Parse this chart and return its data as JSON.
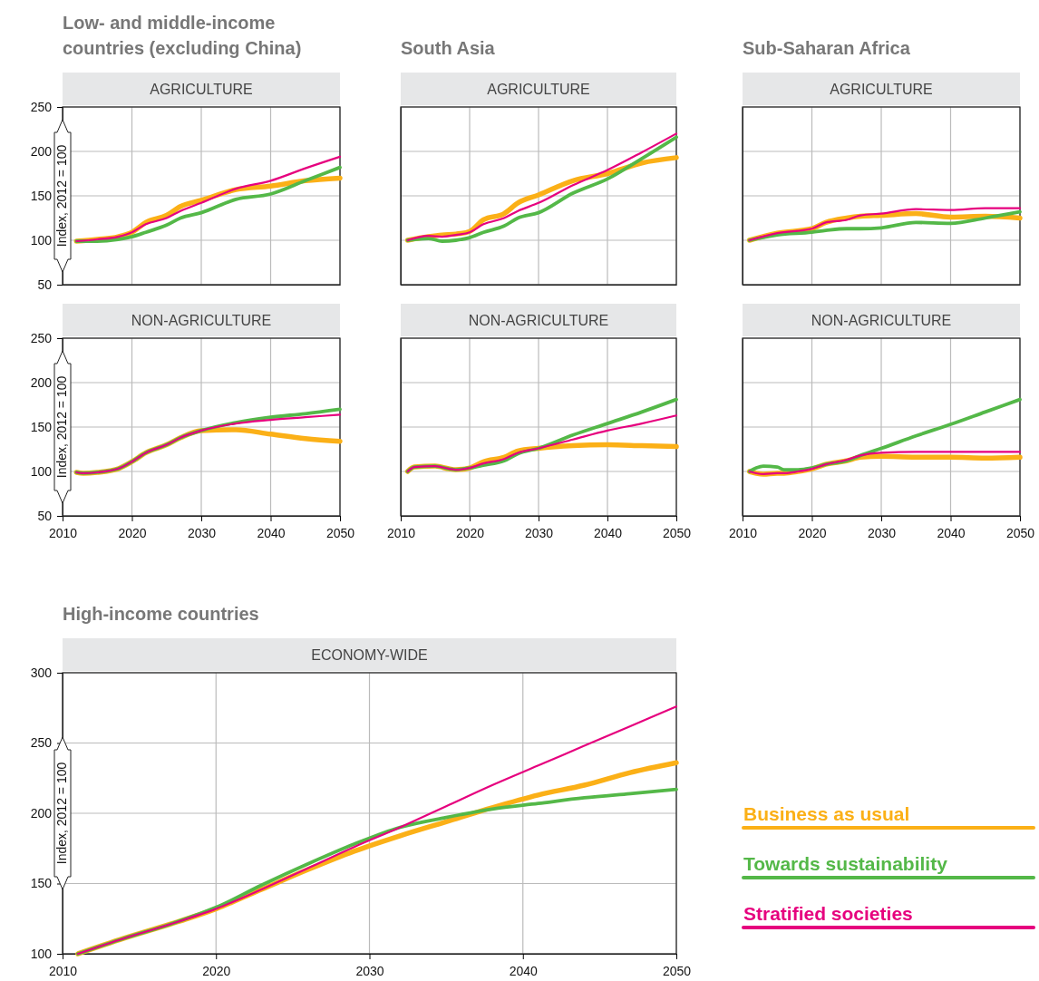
{
  "chart_data": [
    {
      "type": "line",
      "title": "Low- and middle-income countries (excluding China)",
      "subtitle": "AGRICULTURE",
      "ylabel": "Index, 2012 = 100",
      "xlim": [
        2010,
        2050
      ],
      "xticks": [
        2010,
        2020,
        2030,
        2040,
        2050
      ],
      "ylim": [
        50,
        250
      ],
      "yticks": [
        50,
        100,
        150,
        200,
        250
      ],
      "grid": true,
      "tick_labels": "y",
      "x": [
        2012,
        2015,
        2018,
        2020,
        2022,
        2025,
        2027,
        2030,
        2035,
        2040,
        2045,
        2050
      ],
      "series": [
        {
          "color": "#fbb017",
          "values": [
            99,
            101,
            104,
            109,
            120,
            128,
            138,
            145,
            157,
            161,
            167,
            170
          ]
        },
        {
          "color": "#54b848",
          "values": [
            99,
            99,
            101,
            104,
            109,
            117,
            125,
            131,
            146,
            152,
            167,
            182
          ]
        },
        {
          "color": "#e6007e",
          "values": [
            99,
            101,
            104,
            109,
            118,
            125,
            133,
            142,
            158,
            167,
            181,
            194
          ]
        }
      ]
    },
    {
      "type": "line",
      "title": "South Asia",
      "subtitle": "AGRICULTURE",
      "xlim": [
        2010,
        2050
      ],
      "xticks": [
        2010,
        2020,
        2030,
        2040,
        2050
      ],
      "ylim": [
        50,
        250
      ],
      "yticks": [
        50,
        100,
        150,
        200,
        250
      ],
      "grid": true,
      "tick_labels": false,
      "x": [
        2011,
        2014,
        2016,
        2018,
        2020,
        2022,
        2025,
        2027,
        2030,
        2035,
        2040,
        2045,
        2050
      ],
      "series": [
        {
          "color": "#fbb017",
          "values": [
            100,
            104,
            106,
            107,
            110,
            123,
            130,
            142,
            151,
            167,
            175,
            187,
            193
          ]
        },
        {
          "color": "#54b848",
          "values": [
            100,
            102,
            99,
            100,
            103,
            109,
            116,
            125,
            131,
            153,
            169,
            192,
            216
          ]
        },
        {
          "color": "#e6007e",
          "values": [
            100,
            105,
            104,
            106,
            109,
            118,
            125,
            133,
            142,
            162,
            179,
            199,
            220
          ]
        }
      ]
    },
    {
      "type": "line",
      "title": "Sub-Saharan Africa",
      "subtitle": "AGRICULTURE",
      "xlim": [
        2010,
        2050
      ],
      "xticks": [
        2010,
        2020,
        2030,
        2040,
        2050
      ],
      "ylim": [
        50,
        250
      ],
      "yticks": [
        50,
        100,
        150,
        200,
        250
      ],
      "grid": true,
      "tick_labels": false,
      "x": [
        2011,
        2015,
        2020,
        2022,
        2025,
        2027,
        2030,
        2035,
        2040,
        2045,
        2050
      ],
      "series": [
        {
          "color": "#fbb017",
          "values": [
            100,
            108,
            113,
            120,
            125,
            127,
            128,
            130,
            126,
            127,
            125
          ]
        },
        {
          "color": "#54b848",
          "values": [
            100,
            106,
            109,
            111,
            113,
            113,
            114,
            120,
            119,
            125,
            132
          ]
        },
        {
          "color": "#e6007e",
          "values": [
            100,
            108,
            113,
            120,
            123,
            128,
            130,
            135,
            134,
            136,
            136
          ]
        }
      ]
    },
    {
      "type": "line",
      "subtitle": "NON-AGRICULTURE",
      "ylabel": "Index, 2012 = 100",
      "xlim": [
        2010,
        2050
      ],
      "xticks": [
        2010,
        2020,
        2030,
        2040,
        2050
      ],
      "ylim": [
        50,
        250
      ],
      "yticks": [
        50,
        100,
        150,
        200,
        250
      ],
      "grid": true,
      "x": [
        2012,
        2013,
        2015,
        2018,
        2020,
        2022,
        2025,
        2027,
        2030,
        2035,
        2040,
        2045,
        2050
      ],
      "series": [
        {
          "color": "#fbb017",
          "values": [
            99,
            98,
            99,
            103,
            111,
            121,
            130,
            138,
            146,
            147,
            142,
            137,
            134
          ]
        },
        {
          "color": "#54b848",
          "values": [
            99,
            98,
            99,
            103,
            111,
            121,
            130,
            138,
            146,
            155,
            161,
            165,
            170
          ]
        },
        {
          "color": "#e6007e",
          "values": [
            99,
            98,
            99,
            103,
            111,
            121,
            130,
            138,
            146,
            154,
            158,
            161,
            164
          ]
        }
      ]
    },
    {
      "type": "line",
      "subtitle": "NON-AGRICULTURE",
      "xlim": [
        2010,
        2050
      ],
      "xticks": [
        2010,
        2020,
        2030,
        2040,
        2050
      ],
      "ylim": [
        50,
        250
      ],
      "yticks": [
        50,
        100,
        150,
        200,
        250
      ],
      "grid": true,
      "tick_labels": "x",
      "x": [
        2011,
        2012,
        2015,
        2017,
        2018,
        2020,
        2022,
        2025,
        2027,
        2030,
        2035,
        2040,
        2045,
        2050
      ],
      "series": [
        {
          "color": "#fbb017",
          "values": [
            100,
            105,
            106,
            103,
            102,
            104,
            111,
            116,
            123,
            126,
            129,
            130,
            129,
            128
          ]
        },
        {
          "color": "#54b848",
          "values": [
            100,
            105,
            106,
            103,
            102,
            104,
            107,
            112,
            120,
            126,
            141,
            154,
            167,
            181
          ]
        },
        {
          "color": "#e6007e",
          "values": [
            100,
            105,
            106,
            103,
            102,
            104,
            109,
            114,
            121,
            126,
            136,
            146,
            154,
            163
          ]
        }
      ]
    },
    {
      "type": "line",
      "subtitle": "NON-AGRICULTURE",
      "xlim": [
        2010,
        2050
      ],
      "xticks": [
        2010,
        2020,
        2030,
        2040,
        2050
      ],
      "ylim": [
        50,
        250
      ],
      "yticks": [
        50,
        100,
        150,
        200,
        250
      ],
      "grid": true,
      "tick_labels": "x",
      "x": [
        2011,
        2012,
        2013,
        2015,
        2016,
        2018,
        2020,
        2022,
        2025,
        2027,
        2030,
        2035,
        2040,
        2045,
        2050
      ],
      "series": [
        {
          "color": "#fbb017",
          "values": [
            100,
            98,
            97,
            98,
            98,
            100,
            103,
            108,
            112,
            116,
            117,
            116,
            116,
            115,
            116
          ]
        },
        {
          "color": "#54b848",
          "values": [
            100,
            104,
            106,
            105,
            102,
            102,
            104,
            108,
            112,
            118,
            126,
            140,
            153,
            167,
            181
          ]
        },
        {
          "color": "#e6007e",
          "values": [
            100,
            98,
            97,
            98,
            98,
            100,
            103,
            108,
            113,
            118,
            121,
            122,
            122,
            122,
            122
          ]
        }
      ]
    },
    {
      "type": "line",
      "title": "High-income countries",
      "subtitle": "ECONOMY-WIDE",
      "ylabel": "Index, 2012 = 100",
      "xlim": [
        2010,
        2050
      ],
      "xticks": [
        2010,
        2020,
        2030,
        2040,
        2050
      ],
      "ylim": [
        100,
        300
      ],
      "yticks": [
        100,
        150,
        200,
        250,
        300
      ],
      "grid": true,
      "legend": "bottom right",
      "x": [
        2011,
        2014,
        2017,
        2020,
        2023,
        2026,
        2029,
        2032,
        2035,
        2038,
        2041,
        2044,
        2047,
        2050
      ],
      "series": [
        {
          "name": "Business as usual",
          "color": "#fbb017",
          "values": [
            100,
            111,
            121,
            132,
            146,
            160,
            173,
            184,
            194,
            204,
            213,
            220,
            229,
            236
          ]
        },
        {
          "name": "Towards sustainability",
          "color": "#54b848",
          "values": [
            100,
            111,
            121,
            133,
            149,
            164,
            178,
            190,
            197,
            203,
            207,
            211,
            214,
            217
          ]
        },
        {
          "name": "Stratified societies",
          "color": "#e6007e",
          "values": [
            100,
            111,
            121,
            132,
            146,
            161,
            176,
            190,
            205,
            220,
            234,
            248,
            262,
            276
          ]
        }
      ]
    }
  ]
}
